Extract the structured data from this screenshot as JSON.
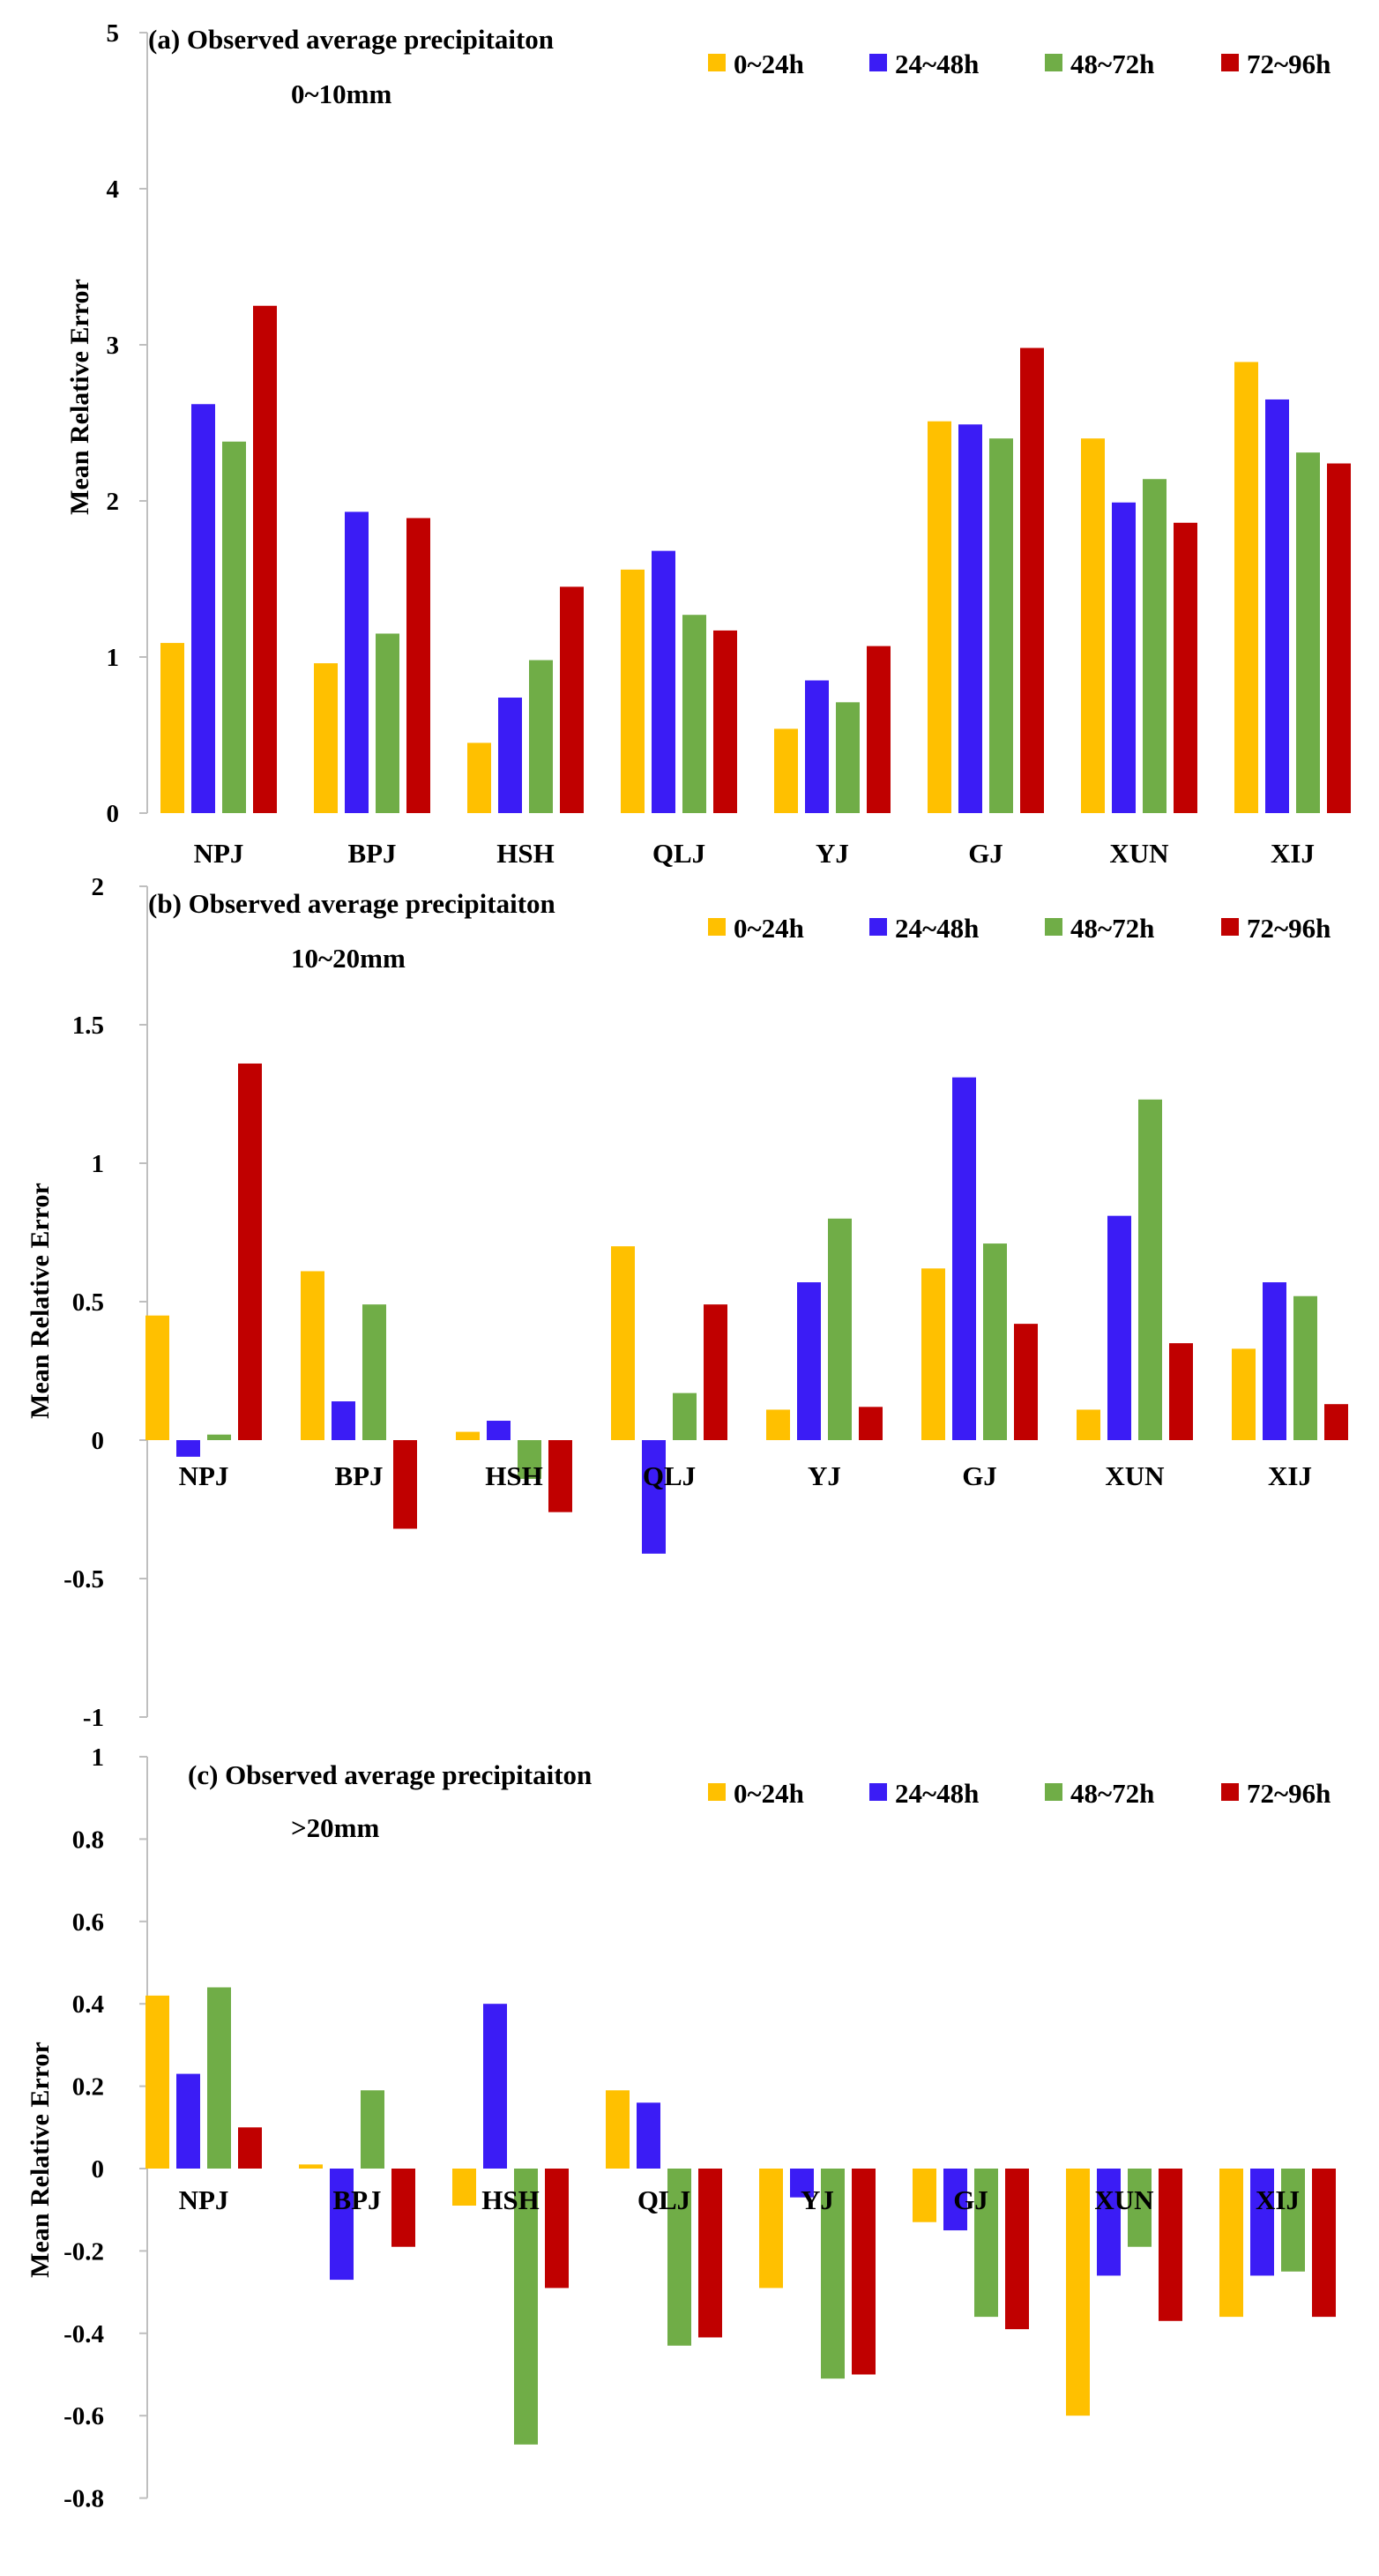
{
  "chart_data": [
    {
      "type": "bar",
      "title_line1": "(a) Observed average precipitaiton",
      "title_line2": "0~10mm",
      "ylabel": "Mean Relative Error",
      "ylim": [
        0,
        5
      ],
      "yticks": [
        0,
        1,
        2,
        3,
        4,
        5
      ],
      "ytick_labels": [
        "0",
        "1",
        "2",
        "3",
        "4",
        "5"
      ],
      "categories": [
        "NPJ",
        "BPJ",
        "HSH",
        "QLJ",
        "YJ",
        "GJ",
        "XUN",
        "XIJ"
      ],
      "series": [
        {
          "name": "0~24h",
          "color": "#FFC000",
          "values": [
            1.09,
            0.96,
            0.45,
            1.56,
            0.54,
            2.51,
            2.4,
            2.89
          ]
        },
        {
          "name": "24~48h",
          "color": "#3B1CF5",
          "values": [
            2.62,
            1.93,
            0.74,
            1.68,
            0.85,
            2.49,
            1.99,
            2.65
          ]
        },
        {
          "name": "48~72h",
          "color": "#70AD47",
          "values": [
            2.38,
            1.15,
            0.98,
            1.27,
            0.71,
            2.4,
            2.14,
            2.31
          ]
        },
        {
          "name": "72~96h",
          "color": "#C00000",
          "values": [
            3.25,
            1.89,
            1.45,
            1.17,
            1.07,
            2.98,
            1.86,
            2.24
          ]
        }
      ]
    },
    {
      "type": "bar",
      "title_line1": "(b) Observed average precipitaiton",
      "title_line2": "10~20mm",
      "ylabel": "Mean Relative Error",
      "ylim": [
        -1,
        2
      ],
      "yticks": [
        -1,
        -0.5,
        0,
        0.5,
        1,
        1.5,
        2
      ],
      "ytick_labels": [
        "-1",
        "-0.5",
        "0",
        "0.5",
        "1",
        "1.5",
        "2"
      ],
      "categories": [
        "NPJ",
        "BPJ",
        "HSH",
        "QLJ",
        "YJ",
        "GJ",
        "XUN",
        "XIJ"
      ],
      "series": [
        {
          "name": "0~24h",
          "color": "#FFC000",
          "values": [
            0.45,
            0.61,
            0.03,
            0.7,
            0.11,
            0.62,
            0.11,
            0.33
          ]
        },
        {
          "name": "24~48h",
          "color": "#3B1CF5",
          "values": [
            -0.06,
            0.14,
            0.07,
            -0.41,
            0.57,
            1.31,
            0.81,
            0.57
          ]
        },
        {
          "name": "48~72h",
          "color": "#70AD47",
          "values": [
            0.02,
            0.49,
            -0.14,
            0.17,
            0.8,
            0.71,
            1.23,
            0.52
          ]
        },
        {
          "name": "72~96h",
          "color": "#C00000",
          "values": [
            1.36,
            -0.32,
            -0.26,
            0.49,
            0.12,
            0.42,
            0.35,
            0.13
          ]
        }
      ]
    },
    {
      "type": "bar",
      "title_line1": "(c) Observed average precipitaiton",
      "title_line2": ">20mm",
      "ylabel": "Mean Relative Error",
      "ylim": [
        -0.8,
        1
      ],
      "yticks": [
        -0.8,
        -0.6,
        -0.4,
        -0.2,
        0,
        0.2,
        0.4,
        0.6,
        0.8,
        1
      ],
      "ytick_labels": [
        "-0.8",
        "-0.6",
        "-0.4",
        "-0.2",
        "0",
        "0.2",
        "0.4",
        "0.6",
        "0.8",
        "1"
      ],
      "categories": [
        "NPJ",
        "BPJ",
        "HSH",
        "QLJ",
        "YJ",
        "GJ",
        "XUN",
        "XIJ"
      ],
      "series": [
        {
          "name": "0~24h",
          "color": "#FFC000",
          "values": [
            0.42,
            0.01,
            -0.09,
            0.19,
            -0.29,
            -0.13,
            -0.6,
            -0.36
          ]
        },
        {
          "name": "24~48h",
          "color": "#3B1CF5",
          "values": [
            0.23,
            -0.27,
            0.4,
            0.16,
            -0.07,
            -0.15,
            -0.26,
            -0.26
          ]
        },
        {
          "name": "48~72h",
          "color": "#70AD47",
          "values": [
            0.44,
            0.19,
            -0.67,
            -0.43,
            -0.51,
            -0.36,
            -0.19,
            -0.25
          ]
        },
        {
          "name": "72~96h",
          "color": "#C00000",
          "values": [
            0.1,
            -0.19,
            -0.29,
            -0.41,
            -0.5,
            -0.39,
            -0.37,
            -0.36
          ]
        }
      ]
    }
  ]
}
